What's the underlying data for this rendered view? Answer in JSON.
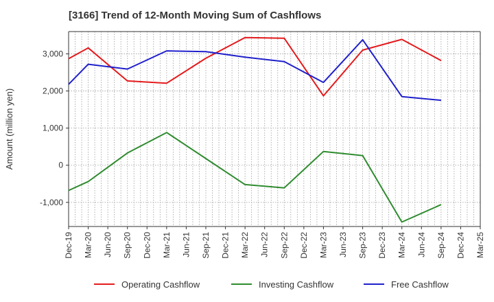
{
  "chart_data": {
    "type": "line",
    "title": "[3166]  Trend of 12-Month Moving Sum of Cashflows",
    "xlabel": "",
    "ylabel": "Amount (million yen)",
    "ylim": [
      -1650,
      3600
    ],
    "yticks": [
      -1000,
      0,
      1000,
      2000,
      3000
    ],
    "ytick_labels": [
      "-1,000",
      "0",
      "1,000",
      "2,000",
      "3,000"
    ],
    "categories": [
      "Dec-19",
      "Mar-20",
      "Jun-20",
      "Sep-20",
      "Dec-20",
      "Mar-21",
      "Jun-21",
      "Sep-21",
      "Dec-21",
      "Mar-22",
      "Jun-22",
      "Sep-22",
      "Dec-22",
      "Mar-23",
      "Jun-23",
      "Sep-23",
      "Dec-23",
      "Mar-24",
      "Jun-24",
      "Sep-24",
      "Dec-24",
      "Mar-25"
    ],
    "grid": true,
    "legend_position": "bottom",
    "series": [
      {
        "name": "Operating Cashflow",
        "color": "#e41a1c",
        "values": [
          2870,
          3160,
          null,
          2270,
          null,
          2210,
          null,
          2880,
          null,
          3440,
          null,
          3420,
          null,
          1870,
          null,
          3100,
          null,
          3390,
          null,
          2820,
          null,
          null
        ]
      },
      {
        "name": "Investing Cashflow",
        "color": "#2e8b2e",
        "values": [
          -680,
          -440,
          null,
          330,
          null,
          880,
          null,
          180,
          null,
          -520,
          null,
          -610,
          null,
          370,
          null,
          260,
          null,
          -1530,
          null,
          -1060,
          null,
          null
        ]
      },
      {
        "name": "Free Cashflow",
        "color": "#1f1fcc",
        "values": [
          2180,
          2720,
          null,
          2590,
          null,
          3080,
          null,
          3060,
          null,
          2910,
          null,
          2790,
          null,
          2230,
          null,
          3380,
          null,
          1850,
          null,
          1750,
          null,
          null
        ]
      }
    ]
  }
}
